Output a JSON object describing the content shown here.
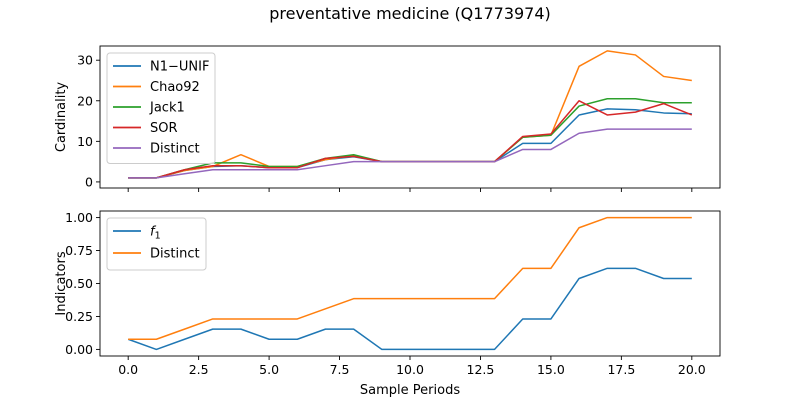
{
  "title": "preventative medicine (Q1773974)",
  "chart_data": [
    {
      "type": "line",
      "ylabel": "Cardinality",
      "xlim": [
        -1.0,
        21.0
      ],
      "ylim": [
        -1.5,
        33.5
      ],
      "x_ticks": [
        0,
        2.5,
        5,
        7.5,
        10,
        12.5,
        15,
        17.5,
        20
      ],
      "y_ticks": [
        0,
        10,
        20,
        30
      ],
      "y_tick_labels": [
        "0",
        "10",
        "20",
        "30"
      ],
      "show_x_tick_labels": false,
      "legend": "top-left",
      "x": [
        0,
        1,
        2,
        3,
        4,
        5,
        6,
        7,
        8,
        9,
        10,
        11,
        12,
        13,
        14,
        15,
        16,
        17,
        18,
        19,
        20
      ],
      "series": [
        {
          "name": "N1−UNIF",
          "color": "#1f77b4",
          "values": [
            1,
            1,
            2.8,
            3.8,
            4.0,
            3.5,
            3.5,
            5.5,
            6.2,
            5.0,
            5.0,
            5.0,
            5.0,
            5.0,
            9.5,
            9.5,
            16.5,
            18.0,
            17.8,
            17.0,
            16.8
          ]
        },
        {
          "name": "Chao92",
          "color": "#ff7f0e",
          "values": [
            1,
            1,
            2.8,
            3.8,
            6.7,
            3.8,
            3.8,
            5.5,
            6.5,
            5.0,
            5.0,
            5.0,
            5.0,
            5.0,
            11.0,
            11.5,
            28.5,
            32.3,
            31.3,
            26.0,
            25.0
          ]
        },
        {
          "name": "Jack1",
          "color": "#2ca02c",
          "values": [
            1,
            1,
            3.0,
            4.7,
            4.7,
            3.8,
            3.8,
            5.8,
            6.7,
            5.0,
            5.0,
            5.0,
            5.0,
            5.0,
            11.0,
            11.5,
            18.7,
            20.5,
            20.5,
            19.5,
            19.5
          ]
        },
        {
          "name": "SOR",
          "color": "#d62728",
          "values": [
            1,
            1,
            3.0,
            4.0,
            4.0,
            3.5,
            3.5,
            5.8,
            6.3,
            5.0,
            5.0,
            5.0,
            5.0,
            5.0,
            11.2,
            11.8,
            20.0,
            16.5,
            17.2,
            19.3,
            16.5
          ]
        },
        {
          "name": "Distinct",
          "color": "#9467bd",
          "values": [
            1,
            1,
            2.0,
            3.0,
            3.0,
            3.0,
            3.0,
            4.0,
            5.0,
            5.0,
            5.0,
            5.0,
            5.0,
            5.0,
            8.0,
            8.0,
            12.0,
            13.0,
            13.0,
            13.0,
            13.0
          ]
        }
      ]
    },
    {
      "type": "line",
      "ylabel": "Indicators",
      "xlabel": "Sample Periods",
      "xlim": [
        -1.0,
        21.0
      ],
      "ylim": [
        -0.05,
        1.05
      ],
      "x_ticks": [
        0,
        2.5,
        5,
        7.5,
        10,
        12.5,
        15,
        17.5,
        20
      ],
      "x_tick_labels": [
        "0.0",
        "2.5",
        "5.0",
        "7.5",
        "10.0",
        "12.5",
        "15.0",
        "17.5",
        "20.0"
      ],
      "y_ticks": [
        0,
        0.25,
        0.5,
        0.75,
        1.0
      ],
      "y_tick_labels": [
        "0.00",
        "0.25",
        "0.50",
        "0.75",
        "1.00"
      ],
      "legend": "top-left",
      "x": [
        0,
        1,
        2,
        3,
        4,
        5,
        6,
        7,
        8,
        9,
        10,
        11,
        12,
        13,
        14,
        15,
        16,
        17,
        18,
        19,
        20
      ],
      "series": [
        {
          "name": "f1",
          "color": "#1f77b4",
          "values": [
            0.077,
            0.0,
            0.077,
            0.154,
            0.154,
            0.077,
            0.077,
            0.154,
            0.154,
            0.0,
            0.0,
            0.0,
            0.0,
            0.0,
            0.231,
            0.231,
            0.538,
            0.615,
            0.615,
            0.538,
            0.538
          ]
        },
        {
          "name": "Distinct",
          "color": "#ff7f0e",
          "values": [
            0.077,
            0.077,
            0.154,
            0.231,
            0.231,
            0.231,
            0.231,
            0.308,
            0.385,
            0.385,
            0.385,
            0.385,
            0.385,
            0.385,
            0.615,
            0.615,
            0.923,
            1.0,
            1.0,
            1.0,
            1.0
          ]
        }
      ]
    }
  ]
}
